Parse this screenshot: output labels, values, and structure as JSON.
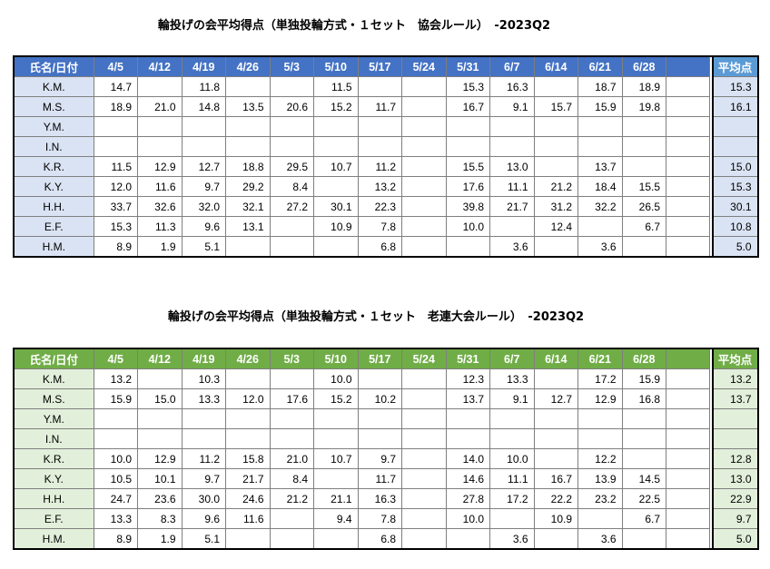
{
  "tables": [
    {
      "id": "table1",
      "title": "輪投げの会平均得点（単独投輪方式・１セット　協会ルール）　-2023Q2",
      "header_name": "氏名/日付",
      "header_avg": "平均点",
      "dates": [
        "4/5",
        "4/12",
        "4/19",
        "4/26",
        "5/3",
        "5/10",
        "5/17",
        "5/24",
        "5/31",
        "6/7",
        "6/14",
        "6/21",
        "6/28",
        ""
      ],
      "rows": [
        {
          "name": "K.M.",
          "values": [
            "14.7",
            "",
            "11.8",
            "",
            "",
            "11.5",
            "",
            "",
            "15.3",
            "16.3",
            "",
            "18.7",
            "18.9",
            ""
          ],
          "avg": "15.3"
        },
        {
          "name": "M.S.",
          "values": [
            "18.9",
            "21.0",
            "14.8",
            "13.5",
            "20.6",
            "15.2",
            "11.7",
            "",
            "16.7",
            "9.1",
            "15.7",
            "15.9",
            "19.8",
            ""
          ],
          "avg": "16.1"
        },
        {
          "name": "Y.M.",
          "values": [
            "",
            "",
            "",
            "",
            "",
            "",
            "",
            "",
            "",
            "",
            "",
            "",
            "",
            ""
          ],
          "avg": ""
        },
        {
          "name": "I.N.",
          "values": [
            "",
            "",
            "",
            "",
            "",
            "",
            "",
            "",
            "",
            "",
            "",
            "",
            "",
            ""
          ],
          "avg": ""
        },
        {
          "name": "K.R.",
          "values": [
            "11.5",
            "12.9",
            "12.7",
            "18.8",
            "29.5",
            "10.7",
            "11.2",
            "",
            "15.5",
            "13.0",
            "",
            "13.7",
            "",
            ""
          ],
          "avg": "15.0"
        },
        {
          "name": "K.Y.",
          "values": [
            "12.0",
            "11.6",
            "9.7",
            "29.2",
            "8.4",
            "",
            "13.2",
            "",
            "17.6",
            "11.1",
            "21.2",
            "18.4",
            "15.5",
            ""
          ],
          "avg": "15.3"
        },
        {
          "name": "H.H.",
          "values": [
            "33.7",
            "32.6",
            "32.0",
            "32.1",
            "27.2",
            "30.1",
            "22.3",
            "",
            "39.8",
            "21.7",
            "31.2",
            "32.2",
            "26.5",
            ""
          ],
          "avg": "30.1"
        },
        {
          "name": "E.F.",
          "values": [
            "15.3",
            "11.3",
            "9.6",
            "13.1",
            "",
            "10.9",
            "7.8",
            "",
            "10.0",
            "",
            "12.4",
            "",
            "6.7",
            ""
          ],
          "avg": "10.8"
        },
        {
          "name": "H.M.",
          "values": [
            "8.9",
            "1.9",
            "5.1",
            "",
            "",
            "",
            "6.8",
            "",
            "",
            "3.6",
            "",
            "3.6",
            "",
            ""
          ],
          "avg": "5.0"
        }
      ]
    },
    {
      "id": "table2",
      "title": "輪投げの会平均得点（単独投輪方式・１セット　老連大会ルール）　-2023Q2",
      "header_name": "氏名/日付",
      "header_avg": "平均点",
      "dates": [
        "4/5",
        "4/12",
        "4/19",
        "4/26",
        "5/3",
        "5/10",
        "5/17",
        "5/24",
        "5/31",
        "6/7",
        "6/14",
        "6/21",
        "6/28",
        ""
      ],
      "rows": [
        {
          "name": "K.M.",
          "values": [
            "13.2",
            "",
            "10.3",
            "",
            "",
            "10.0",
            "",
            "",
            "12.3",
            "13.3",
            "",
            "17.2",
            "15.9",
            ""
          ],
          "avg": "13.2"
        },
        {
          "name": "M.S.",
          "values": [
            "15.9",
            "15.0",
            "13.3",
            "12.0",
            "17.6",
            "15.2",
            "10.2",
            "",
            "13.7",
            "9.1",
            "12.7",
            "12.9",
            "16.8",
            ""
          ],
          "avg": "13.7"
        },
        {
          "name": "Y.M.",
          "values": [
            "",
            "",
            "",
            "",
            "",
            "",
            "",
            "",
            "",
            "",
            "",
            "",
            "",
            ""
          ],
          "avg": ""
        },
        {
          "name": "I.N.",
          "values": [
            "",
            "",
            "",
            "",
            "",
            "",
            "",
            "",
            "",
            "",
            "",
            "",
            "",
            ""
          ],
          "avg": ""
        },
        {
          "name": "K.R.",
          "values": [
            "10.0",
            "12.9",
            "11.2",
            "15.8",
            "21.0",
            "10.7",
            "9.7",
            "",
            "14.0",
            "10.0",
            "",
            "12.2",
            "",
            ""
          ],
          "avg": "12.8"
        },
        {
          "name": "K.Y.",
          "values": [
            "10.5",
            "10.1",
            "9.7",
            "21.7",
            "8.4",
            "",
            "11.7",
            "",
            "14.6",
            "11.1",
            "16.7",
            "13.9",
            "14.5",
            ""
          ],
          "avg": "13.0"
        },
        {
          "name": "H.H.",
          "values": [
            "24.7",
            "23.6",
            "30.0",
            "24.6",
            "21.2",
            "21.1",
            "16.3",
            "",
            "27.8",
            "17.2",
            "22.2",
            "23.2",
            "22.5",
            ""
          ],
          "avg": "22.9"
        },
        {
          "name": "E.F.",
          "values": [
            "13.3",
            "8.3",
            "9.6",
            "11.6",
            "",
            "9.4",
            "7.8",
            "",
            "10.0",
            "",
            "10.9",
            "",
            "6.7",
            ""
          ],
          "avg": "9.7"
        },
        {
          "name": "H.M.",
          "values": [
            "8.9",
            "1.9",
            "5.1",
            "",
            "",
            "",
            "6.8",
            "",
            "",
            "3.6",
            "",
            "3.6",
            "",
            ""
          ],
          "avg": "5.0"
        }
      ]
    }
  ],
  "colors": {
    "table1_header": "#4472c4",
    "table1_avg_header": "#5b9bd5",
    "table1_name_fill": "#dae3f3",
    "table2_header": "#70ad47",
    "table2_name_fill": "#e2efda"
  }
}
